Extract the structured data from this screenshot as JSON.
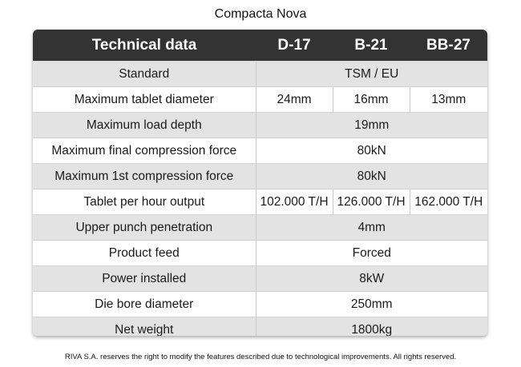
{
  "title": "Compacta Nova",
  "table": {
    "header": {
      "label": "Technical data",
      "models": [
        "D-17",
        "B-21",
        "BB-27"
      ]
    },
    "rows": [
      {
        "label": "Standard",
        "merged": "TSM / EU"
      },
      {
        "label": "Maximum tablet diameter",
        "values": [
          "24mm",
          "16mm",
          "13mm"
        ]
      },
      {
        "label": "Maximum load depth",
        "merged": "19mm"
      },
      {
        "label": "Maximum final compression force",
        "merged": "80kN"
      },
      {
        "label": "Maximum 1st compression force",
        "merged": "80kN"
      },
      {
        "label": "Tablet per hour output",
        "values": [
          "102.000 T/H",
          "126.000 T/H",
          "162.000 T/H"
        ]
      },
      {
        "label": "Upper punch penetration",
        "merged": "4mm"
      },
      {
        "label": "Product feed",
        "merged": "Forced"
      },
      {
        "label": "Power installed",
        "merged": "8kW"
      },
      {
        "label": "Die bore diameter",
        "merged": "250mm"
      },
      {
        "label": "Net weight",
        "merged": "1800kg"
      }
    ]
  },
  "footer": "RIVA S.A. reserves the right to modify the features described due to technological improvements. All rights reserved.",
  "colors": {
    "header_bg": "#333333",
    "row_shaded": "#e3e3e3",
    "row_light": "#ffffff"
  }
}
